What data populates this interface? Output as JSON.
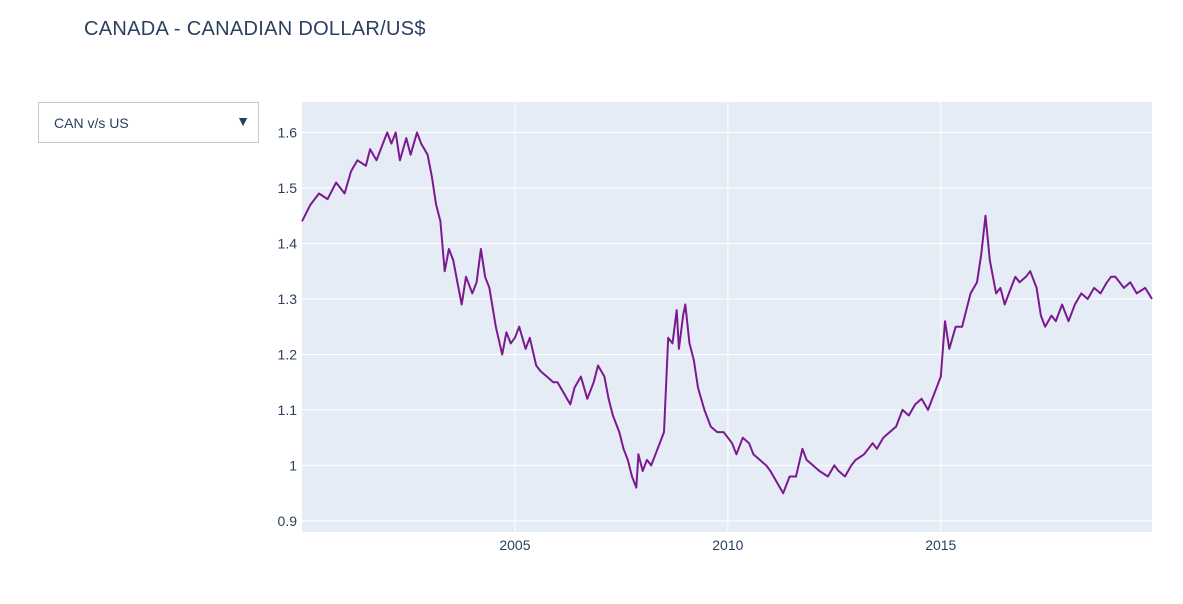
{
  "title": "CANADA - CANADIAN DOLLAR/US$",
  "dropdown": {
    "selected": "CAN v/s US",
    "arrow_icon": "triangle-down-icon"
  },
  "chart_data": {
    "type": "line",
    "title": "CANADA - CANADIAN DOLLAR/US$",
    "xlabel": "",
    "ylabel": "",
    "xlim": [
      2000.0,
      2019.96
    ],
    "ylim": [
      0.88,
      1.655
    ],
    "x_ticks": [
      {
        "value": 2005,
        "label": "2005"
      },
      {
        "value": 2010,
        "label": "2010"
      },
      {
        "value": 2015,
        "label": "2015"
      }
    ],
    "y_ticks": [
      {
        "value": 0.9,
        "label": "0.9"
      },
      {
        "value": 1.0,
        "label": "1"
      },
      {
        "value": 1.1,
        "label": "1.1"
      },
      {
        "value": 1.2,
        "label": "1.2"
      },
      {
        "value": 1.3,
        "label": "1.3"
      },
      {
        "value": 1.4,
        "label": "1.4"
      },
      {
        "value": 1.5,
        "label": "1.5"
      },
      {
        "value": 1.6,
        "label": "1.6"
      }
    ],
    "grid": true,
    "line_color": "#7b1a8f",
    "plot_bgcolor": "#e5ecf6",
    "series": [
      {
        "x": [
          2000.0,
          2000.2,
          2000.4,
          2000.6,
          2000.8,
          2001.0,
          2001.15,
          2001.3,
          2001.5,
          2001.6,
          2001.75,
          2001.9,
          2002.0,
          2002.1,
          2002.2,
          2002.3,
          2002.45,
          2002.55,
          2002.7,
          2002.8,
          2002.95,
          2003.05,
          2003.15,
          2003.25,
          2003.35,
          2003.45,
          2003.55,
          2003.65,
          2003.75,
          2003.85,
          2004.0,
          2004.1,
          2004.2,
          2004.3,
          2004.4,
          2004.55,
          2004.7,
          2004.8,
          2004.9,
          2005.0,
          2005.1,
          2005.25,
          2005.35,
          2005.5,
          2005.6,
          2005.75,
          2005.9,
          2006.0,
          2006.15,
          2006.3,
          2006.4,
          2006.55,
          2006.7,
          2006.85,
          2006.95,
          2007.1,
          2007.2,
          2007.3,
          2007.45,
          2007.55,
          2007.65,
          2007.75,
          2007.85,
          2007.9,
          2008.0,
          2008.1,
          2008.2,
          2008.35,
          2008.5,
          2008.6,
          2008.7,
          2008.8,
          2008.85,
          2008.9,
          2008.95,
          2009.0,
          2009.1,
          2009.2,
          2009.3,
          2009.45,
          2009.6,
          2009.75,
          2009.9,
          2010.0,
          2010.1,
          2010.2,
          2010.35,
          2010.5,
          2010.6,
          2010.75,
          2010.9,
          2011.0,
          2011.15,
          2011.3,
          2011.45,
          2011.6,
          2011.75,
          2011.85,
          2012.0,
          2012.15,
          2012.35,
          2012.5,
          2012.6,
          2012.75,
          2012.9,
          2013.0,
          2013.2,
          2013.4,
          2013.5,
          2013.65,
          2013.8,
          2013.95,
          2014.1,
          2014.25,
          2014.4,
          2014.55,
          2014.7,
          2014.85,
          2015.0,
          2015.1,
          2015.2,
          2015.35,
          2015.5,
          2015.6,
          2015.7,
          2015.85,
          2015.95,
          2016.05,
          2016.15,
          2016.3,
          2016.4,
          2016.5,
          2016.6,
          2016.75,
          2016.85,
          2017.0,
          2017.1,
          2017.25,
          2017.35,
          2017.45,
          2017.6,
          2017.7,
          2017.85,
          2018.0,
          2018.15,
          2018.3,
          2018.45,
          2018.6,
          2018.75,
          2018.9,
          2019.0,
          2019.1,
          2019.3,
          2019.45,
          2019.6,
          2019.8,
          2019.96
        ],
        "y": [
          1.44,
          1.47,
          1.49,
          1.48,
          1.51,
          1.49,
          1.53,
          1.55,
          1.54,
          1.57,
          1.55,
          1.58,
          1.6,
          1.58,
          1.6,
          1.55,
          1.59,
          1.56,
          1.6,
          1.58,
          1.56,
          1.52,
          1.47,
          1.44,
          1.35,
          1.39,
          1.37,
          1.33,
          1.29,
          1.34,
          1.31,
          1.33,
          1.39,
          1.34,
          1.32,
          1.25,
          1.2,
          1.24,
          1.22,
          1.23,
          1.25,
          1.21,
          1.23,
          1.18,
          1.17,
          1.16,
          1.15,
          1.15,
          1.13,
          1.11,
          1.14,
          1.16,
          1.12,
          1.15,
          1.18,
          1.16,
          1.12,
          1.09,
          1.06,
          1.03,
          1.01,
          0.98,
          0.96,
          1.02,
          0.99,
          1.01,
          1.0,
          1.03,
          1.06,
          1.23,
          1.22,
          1.28,
          1.21,
          1.24,
          1.27,
          1.29,
          1.22,
          1.19,
          1.14,
          1.1,
          1.07,
          1.06,
          1.06,
          1.05,
          1.04,
          1.02,
          1.05,
          1.04,
          1.02,
          1.01,
          1.0,
          0.99,
          0.97,
          0.95,
          0.98,
          0.98,
          1.03,
          1.01,
          1.0,
          0.99,
          0.98,
          1.0,
          0.99,
          0.98,
          1.0,
          1.01,
          1.02,
          1.04,
          1.03,
          1.05,
          1.06,
          1.07,
          1.1,
          1.09,
          1.11,
          1.12,
          1.1,
          1.13,
          1.16,
          1.26,
          1.21,
          1.25,
          1.25,
          1.28,
          1.31,
          1.33,
          1.38,
          1.45,
          1.37,
          1.31,
          1.32,
          1.29,
          1.31,
          1.34,
          1.33,
          1.34,
          1.35,
          1.32,
          1.27,
          1.25,
          1.27,
          1.26,
          1.29,
          1.26,
          1.29,
          1.31,
          1.3,
          1.32,
          1.31,
          1.33,
          1.34,
          1.34,
          1.32,
          1.33,
          1.31,
          1.32,
          1.3
        ]
      }
    ]
  }
}
